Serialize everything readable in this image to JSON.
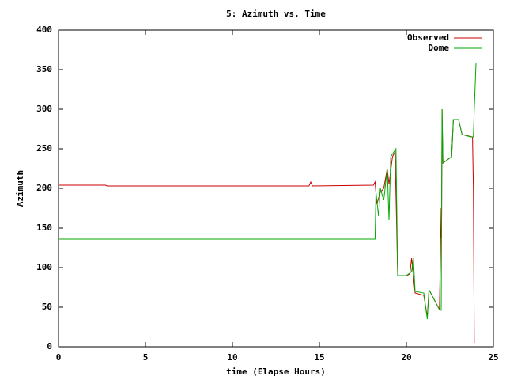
{
  "chart_data": {
    "type": "line",
    "title": "5: Azimuth vs. Time",
    "xlabel": "time (Elapse Hours)",
    "ylabel": "Azimuth",
    "xlim": [
      0,
      25
    ],
    "xticks": [
      0,
      5,
      10,
      15,
      20,
      25
    ],
    "ylim": [
      0,
      400
    ],
    "yticks": [
      0,
      50,
      100,
      150,
      200,
      250,
      300,
      350,
      400
    ],
    "legend": "top-right",
    "series": [
      {
        "name": "Observed",
        "color": "#cc0000",
        "x": [
          0,
          2.7,
          2.8,
          3.3,
          3.4,
          14.4,
          14.5,
          14.6,
          18.1,
          18.2,
          18.3,
          18.5,
          18.7,
          18.9,
          19.0,
          19.2,
          19.35,
          19.5,
          20.0,
          20.2,
          20.3,
          20.5,
          21.0,
          21.2,
          21.3,
          21.9,
          22.0,
          22.02,
          22.05,
          22.1,
          22.6,
          22.7,
          23.0,
          23.2,
          23.8,
          23.85,
          23.9
        ],
        "values": [
          204,
          204,
          203,
          203,
          203,
          203,
          208,
          203,
          204,
          208,
          180,
          195,
          200,
          225,
          205,
          240,
          246,
          90,
          90,
          92,
          112,
          68,
          65,
          38,
          72,
          47,
          175,
          137,
          300,
          232,
          240,
          287,
          287,
          268,
          265,
          200,
          5
        ]
      },
      {
        "name": "Dome",
        "color": "#00aa00",
        "x": [
          0,
          18.2,
          18.25,
          18.4,
          18.5,
          18.7,
          18.9,
          19.0,
          19.1,
          19.4,
          19.5,
          20.0,
          20.3,
          20.4,
          20.5,
          21.0,
          21.2,
          21.3,
          21.9,
          22.0,
          22.05,
          22.1,
          22.6,
          22.7,
          23.0,
          23.2,
          23.7,
          23.85,
          23.9,
          24.0
        ],
        "values": [
          136,
          136,
          195,
          165,
          200,
          185,
          225,
          160,
          240,
          250,
          90,
          90,
          95,
          112,
          70,
          68,
          35,
          72,
          47,
          46,
          300,
          232,
          240,
          287,
          287,
          268,
          265,
          265,
          300,
          358
        ]
      }
    ]
  }
}
